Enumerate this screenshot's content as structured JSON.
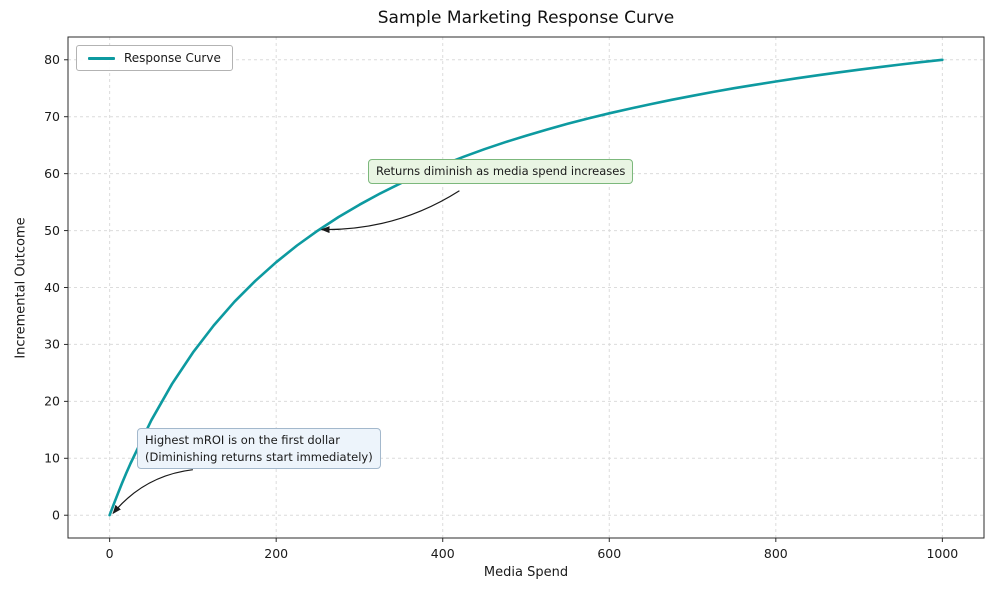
{
  "figure": {
    "background": "#ffffff"
  },
  "chart_data": {
    "type": "line",
    "title": "Sample Marketing Response Curve",
    "xlabel": "Media Spend",
    "ylabel": "Incremental Outcome",
    "xlim": [
      -50,
      1050
    ],
    "ylim": [
      -4,
      84
    ],
    "xticks": [
      0,
      200,
      400,
      600,
      800,
      1000
    ],
    "yticks": [
      0,
      10,
      20,
      30,
      40,
      50,
      60,
      70,
      80
    ],
    "grid": true,
    "grid_style": "dashed",
    "legend": {
      "position": "upper-left",
      "entries": [
        {
          "label": "Response Curve",
          "color": "#0d9aa0"
        }
      ]
    },
    "series": [
      {
        "name": "Response Curve",
        "color": "#0d9aa0",
        "x": [
          0,
          5,
          10,
          15,
          20,
          25,
          50,
          75,
          100,
          125,
          150,
          175,
          200,
          225,
          250,
          275,
          300,
          325,
          350,
          375,
          400,
          425,
          450,
          475,
          500,
          525,
          550,
          575,
          600,
          625,
          650,
          675,
          700,
          725,
          750,
          775,
          800,
          825,
          850,
          875,
          900,
          925,
          950,
          975,
          1000
        ],
        "y": [
          0,
          1.96,
          3.85,
          5.66,
          7.41,
          9.09,
          16.67,
          23.08,
          28.57,
          33.33,
          37.5,
          41.18,
          44.44,
          47.37,
          50,
          52.38,
          54.55,
          56.52,
          58.33,
          60,
          61.54,
          62.96,
          64.29,
          65.52,
          66.67,
          67.74,
          68.75,
          69.7,
          70.59,
          71.43,
          72.22,
          72.97,
          73.68,
          74.36,
          75,
          75.61,
          76.19,
          76.74,
          77.27,
          77.78,
          78.26,
          78.72,
          79.17,
          79.59,
          80
        ]
      }
    ],
    "annotations": [
      {
        "text": "Returns diminish as media spend increases",
        "point_xy": [
          250,
          50
        ],
        "box_topleft_xy": [
          310,
          62.5
        ],
        "arrow_start_xy": [
          420,
          57
        ],
        "arrow_rad": 0.15,
        "bg": "#e9f5e3",
        "border": "#7cb87c"
      },
      {
        "text": "Highest mROI is on the first dollar\n(Diminishing returns start immediately)",
        "point_xy": [
          0,
          0
        ],
        "box_topleft_xy": [
          33,
          15.3
        ],
        "arrow_start_xy": [
          100,
          8
        ],
        "arrow_rad": -0.2,
        "bg": "#edf4fb",
        "border": "#a3b8cc"
      }
    ]
  }
}
